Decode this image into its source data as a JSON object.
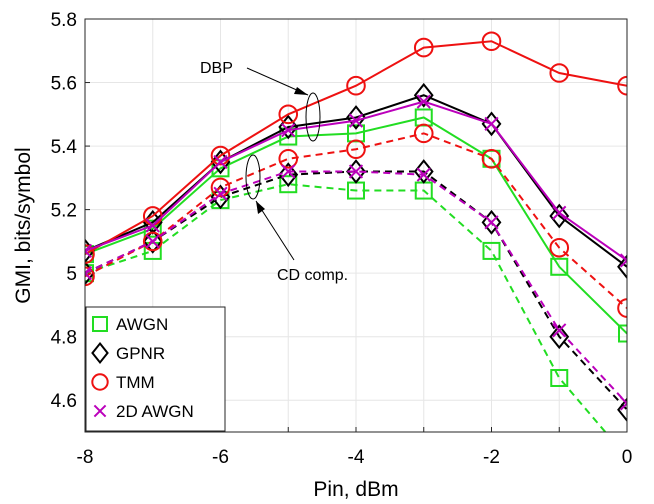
{
  "chart_data": {
    "type": "line",
    "xlabel": "Pin, dBm",
    "ylabel": "GMI, bits/symbol",
    "xlim": [
      -8,
      0
    ],
    "ylim": [
      4.5,
      5.8
    ],
    "xticks": [
      "-8",
      "-6",
      "-4",
      "-2",
      "0"
    ],
    "yticks": [
      "4.6",
      "4.8",
      "5",
      "5.2",
      "5.4",
      "5.6",
      "5.8"
    ],
    "x": [
      -8,
      -7,
      -6,
      -5,
      -4,
      -3,
      -2,
      -1,
      0
    ],
    "grid": true,
    "legend_position": "bottom-left",
    "legend": [
      {
        "name": "AWGN",
        "color": "#22dd22",
        "marker": "square"
      },
      {
        "name": "GPNR",
        "color": "#000000",
        "marker": "diamond"
      },
      {
        "name": "TMM",
        "color": "#ee1111",
        "marker": "circle"
      },
      {
        "name": "2D AWGN",
        "color": "#bb00bb",
        "marker": "x"
      }
    ],
    "annotations": [
      {
        "text": "DBP"
      },
      {
        "text": "CD comp."
      }
    ],
    "series": [
      {
        "group": "AWGN",
        "variant": "DBP",
        "line": "solid",
        "color": "#22dd22",
        "marker": "square",
        "values": [
          5.06,
          5.14,
          5.33,
          5.43,
          5.44,
          5.49,
          5.36,
          5.02,
          4.81
        ]
      },
      {
        "group": "AWGN",
        "variant": "CD comp.",
        "line": "dashed",
        "color": "#22dd22",
        "marker": "square",
        "values": [
          5.0,
          5.07,
          5.23,
          5.28,
          5.26,
          5.26,
          5.07,
          4.67,
          4.42
        ]
      },
      {
        "group": "GPNR",
        "variant": "DBP",
        "line": "solid",
        "color": "#000000",
        "marker": "diamond",
        "values": [
          5.07,
          5.16,
          5.35,
          5.46,
          5.49,
          5.56,
          5.47,
          5.18,
          5.02
        ]
      },
      {
        "group": "GPNR",
        "variant": "CD comp.",
        "line": "dashed",
        "color": "#000000",
        "marker": "diamond",
        "values": [
          5.0,
          5.1,
          5.24,
          5.31,
          5.32,
          5.32,
          5.16,
          4.8,
          4.57
        ]
      },
      {
        "group": "TMM",
        "variant": "DBP",
        "line": "solid",
        "color": "#ee1111",
        "marker": "circle",
        "values": [
          5.06,
          5.18,
          5.37,
          5.5,
          5.59,
          5.71,
          5.73,
          5.63,
          5.59
        ]
      },
      {
        "group": "TMM",
        "variant": "CD comp.",
        "line": "dashed",
        "color": "#ee1111",
        "marker": "circle",
        "values": [
          4.99,
          5.1,
          5.27,
          5.36,
          5.39,
          5.44,
          5.36,
          5.08,
          4.89
        ]
      },
      {
        "group": "2D AWGN",
        "variant": "DBP",
        "line": "solid",
        "color": "#bb00bb",
        "marker": "x",
        "values": [
          5.07,
          5.15,
          5.35,
          5.45,
          5.48,
          5.54,
          5.47,
          5.19,
          5.04
        ]
      },
      {
        "group": "2D AWGN",
        "variant": "CD comp.",
        "line": "dashed",
        "color": "#bb00bb",
        "marker": "x",
        "values": [
          5.0,
          5.1,
          5.25,
          5.32,
          5.32,
          5.31,
          5.16,
          4.82,
          4.59
        ]
      }
    ]
  }
}
